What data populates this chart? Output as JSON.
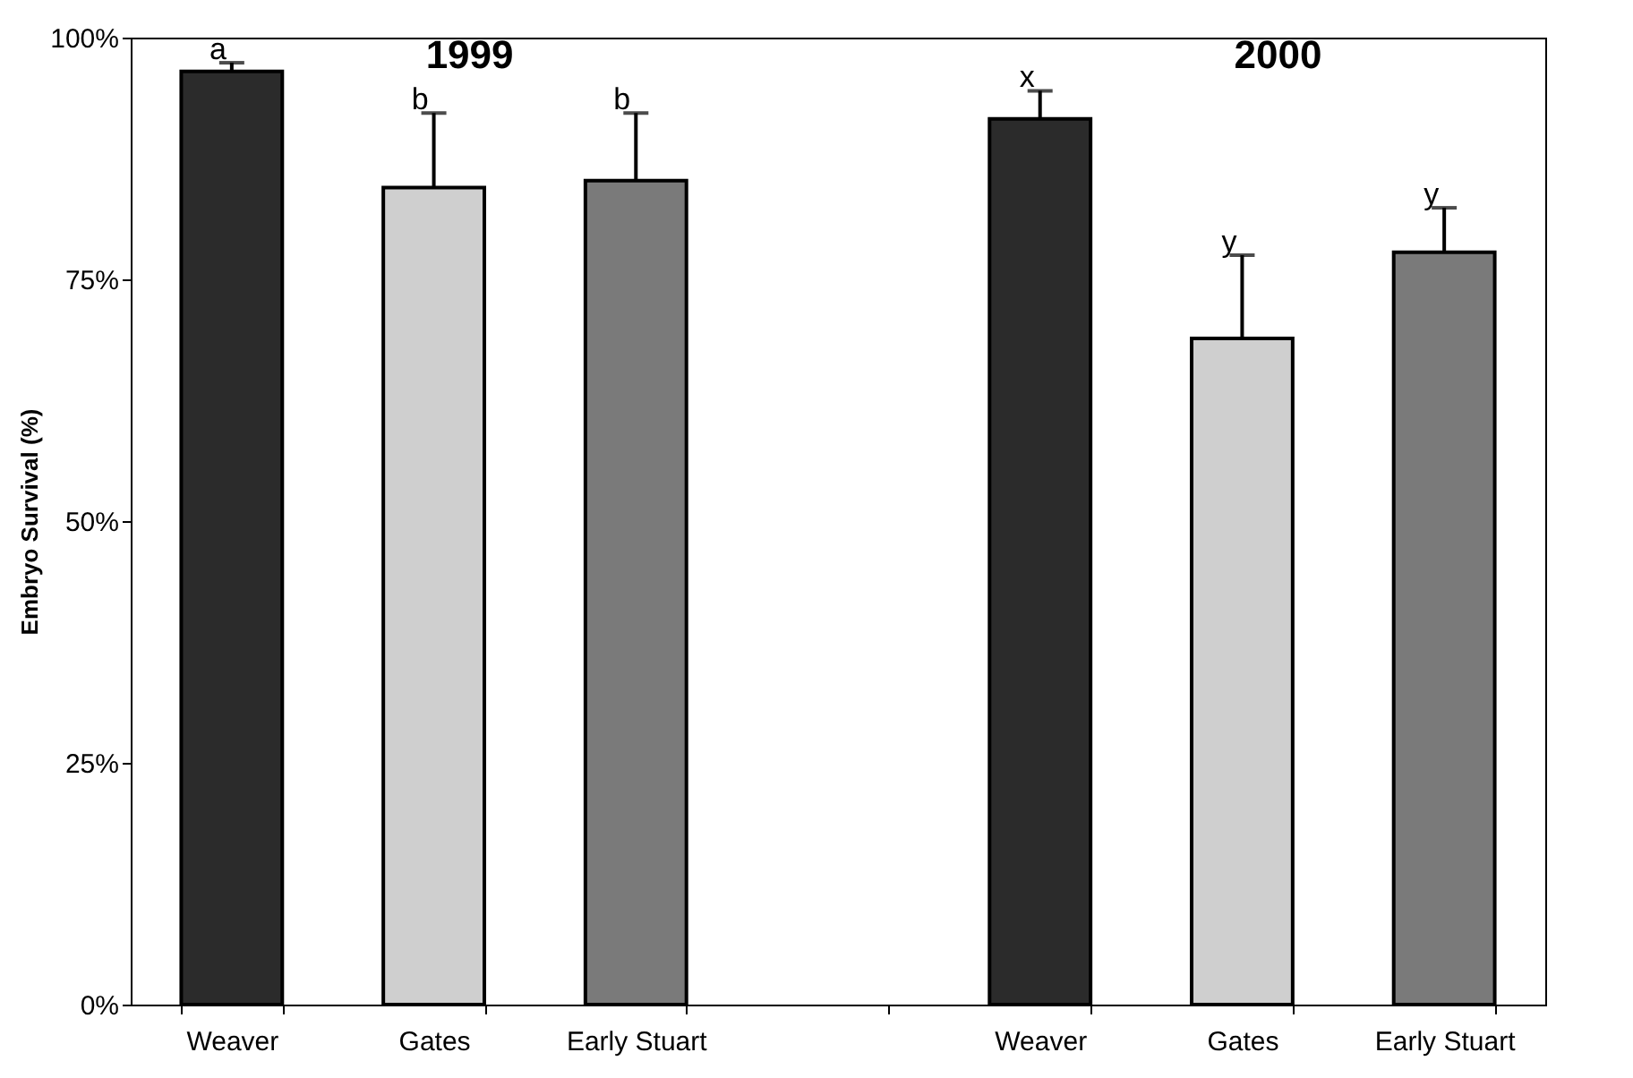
{
  "chart_data": {
    "type": "bar",
    "ylabel": "Embryo Survival (%)",
    "categories": [
      "Weaver",
      "Gates",
      "Early Stuart",
      null,
      "Weaver",
      "Gates",
      "Early Stuart"
    ],
    "values": [
      96.5,
      84.5,
      85.2,
      null,
      91.6,
      68.9,
      77.8
    ],
    "colors": [
      "#2b2b2b",
      "#cfcfcf",
      "#7a7a7a",
      "#ffffff",
      "#2b2b2b",
      "#cfcfcf",
      "#7a7a7a"
    ],
    "errors": [
      [
        96.5,
        97.4
      ],
      [
        84.5,
        92.2
      ],
      [
        85.2,
        92.2
      ],
      null,
      [
        91.6,
        94.5
      ],
      [
        68.9,
        77.5
      ],
      [
        77.8,
        82.4
      ]
    ],
    "ylim": [
      0,
      100
    ],
    "yticks": [
      {
        "value": 0,
        "label": "0%"
      },
      {
        "value": 25,
        "label": "25%"
      },
      {
        "value": 50,
        "label": "50%"
      },
      {
        "value": 75,
        "label": "75%"
      },
      {
        "value": 100,
        "label": "100%"
      }
    ],
    "grid": false,
    "annotations": [
      "1999",
      "2000",
      "a",
      "b",
      "b",
      "x",
      "y",
      "y"
    ]
  }
}
